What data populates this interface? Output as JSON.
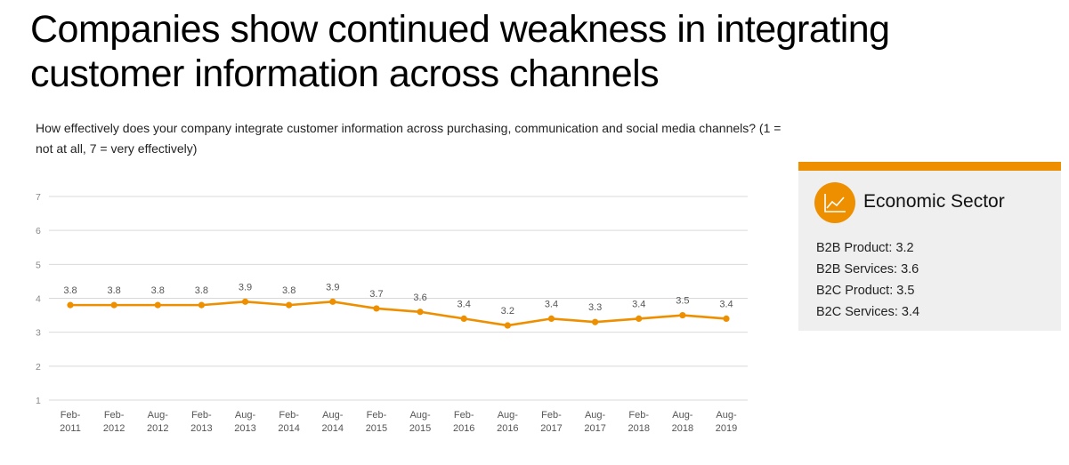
{
  "title": "Companies show continued weakness in integrating customer information across channels",
  "subtitle": "How effectively does your company integrate customer information across purchasing, communication and social media channels? (1 = not at all, 7 = very effectively)",
  "colors": {
    "accent": "#ee8f00",
    "line": "#ee8f00",
    "grid": "#d9d9d9",
    "sidebar_bg": "#efefef"
  },
  "sidebar": {
    "icon": "line-chart-icon",
    "heading": "Economic Sector",
    "items": [
      {
        "label": "B2B Product: 3.2"
      },
      {
        "label": "B2B Services: 3.6"
      },
      {
        "label": "B2C Product: 3.5"
      },
      {
        "label": "B2C Services: 3.4"
      }
    ]
  },
  "chart_data": {
    "type": "line",
    "categories": [
      [
        "Feb-",
        "2011"
      ],
      [
        "Feb-",
        "2012"
      ],
      [
        "Aug-",
        "2012"
      ],
      [
        "Feb-",
        "2013"
      ],
      [
        "Aug-",
        "2013"
      ],
      [
        "Feb-",
        "2014"
      ],
      [
        "Aug-",
        "2014"
      ],
      [
        "Feb-",
        "2015"
      ],
      [
        "Aug-",
        "2015"
      ],
      [
        "Feb-",
        "2016"
      ],
      [
        "Aug-",
        "2016"
      ],
      [
        "Feb-",
        "2017"
      ],
      [
        "Aug-",
        "2017"
      ],
      [
        "Feb-",
        "2018"
      ],
      [
        "Aug-",
        "2018"
      ],
      [
        "Aug-",
        "2019"
      ]
    ],
    "values": [
      3.8,
      3.8,
      3.8,
      3.8,
      3.9,
      3.8,
      3.9,
      3.7,
      3.6,
      3.4,
      3.2,
      3.4,
      3.3,
      3.4,
      3.5,
      3.4
    ],
    "data_labels": [
      "3.8",
      "3.8",
      "3.8",
      "3.8",
      "3.9",
      "3.8",
      "3.9",
      "3.7",
      "3.6",
      "3.4",
      "3.2",
      "3.4",
      "3.3",
      "3.4",
      "3.5",
      "3.4"
    ],
    "yticks": [
      "1",
      "2",
      "3",
      "4",
      "5",
      "6",
      "7"
    ],
    "ylim": [
      1,
      7
    ],
    "grid": true,
    "legend": "none"
  }
}
